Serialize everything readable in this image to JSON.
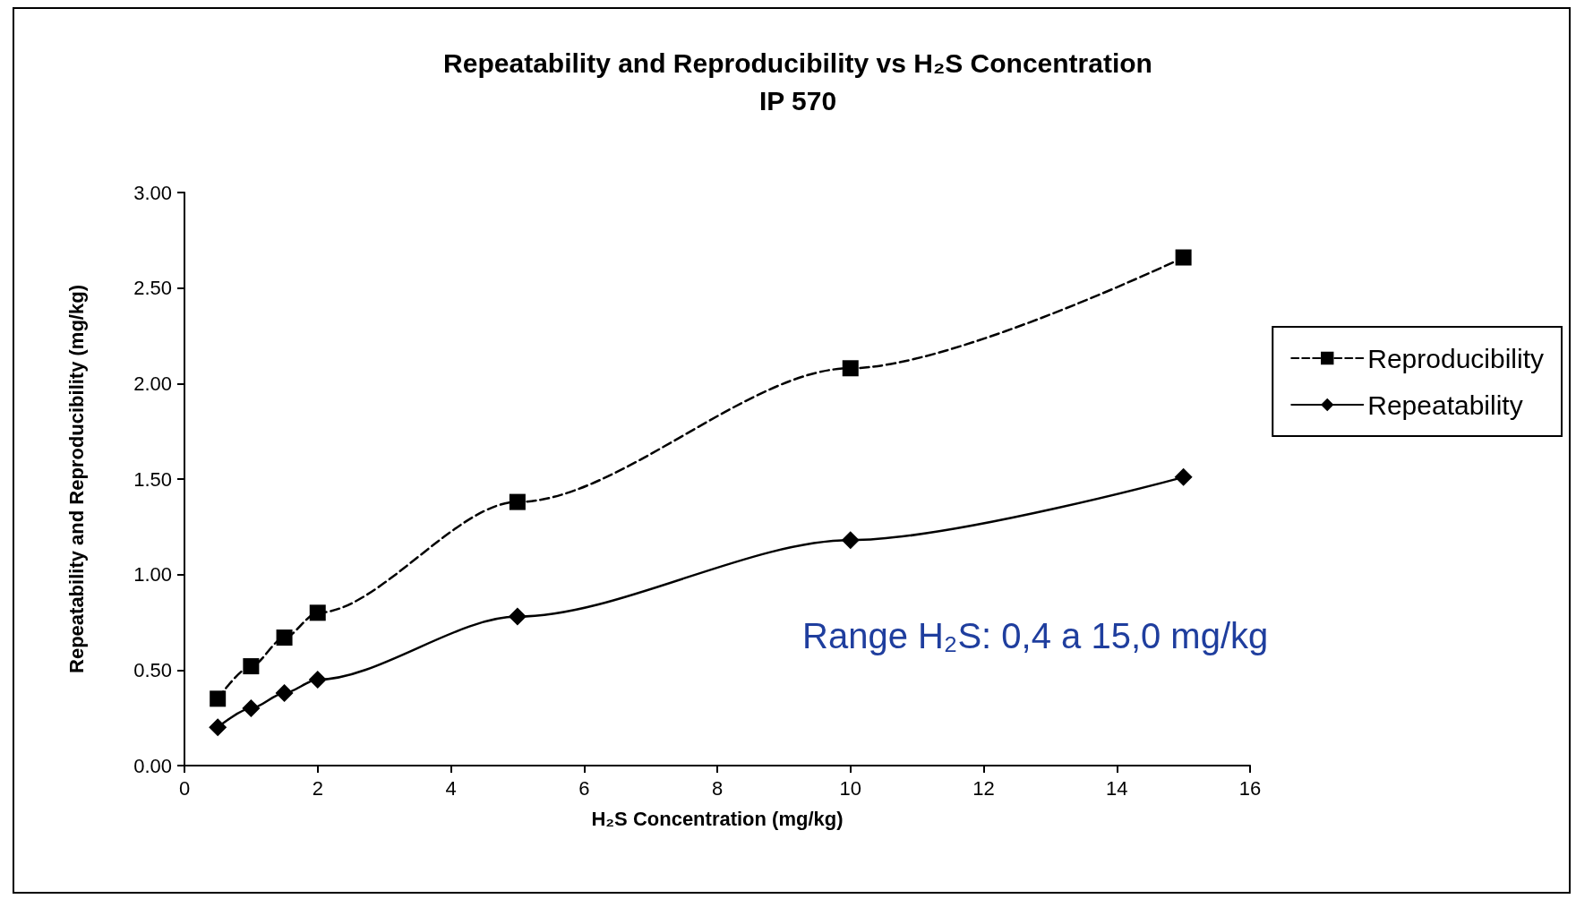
{
  "chart_data": {
    "type": "line",
    "title": "Repeatability and Reproducibility vs H₂S Concentration",
    "subtitle": "IP 570",
    "xlabel": "H₂S Concentration (mg/kg)",
    "ylabel": "Repeatability and Reproducibility (mg/kg)",
    "x": [
      0.5,
      1,
      1.5,
      2,
      5,
      10,
      15
    ],
    "series": [
      {
        "name": "Reproducibility",
        "color": "#000000",
        "marker": "square",
        "line_style": "dashed",
        "values": [
          0.35,
          0.52,
          0.67,
          0.8,
          1.38,
          2.08,
          2.66
        ]
      },
      {
        "name": "Repeatability",
        "color": "#000000",
        "marker": "diamond",
        "line_style": "solid",
        "values": [
          0.2,
          0.3,
          0.38,
          0.45,
          0.78,
          1.18,
          1.51
        ]
      }
    ],
    "xlim": [
      0,
      16
    ],
    "xticks": [
      0,
      2,
      4,
      6,
      8,
      10,
      12,
      14,
      16
    ],
    "ylim": [
      0,
      3
    ],
    "yticks": [
      {
        "value": 0,
        "label": "0.00"
      },
      {
        "value": 0.5,
        "label": "0.50"
      },
      {
        "value": 1,
        "label": "1.00"
      },
      {
        "value": 1.5,
        "label": "1.50"
      },
      {
        "value": 2,
        "label": "2.00"
      },
      {
        "value": 2.5,
        "label": "2.50"
      },
      {
        "value": 3,
        "label": "3.00"
      }
    ],
    "grid": false,
    "legend": "right",
    "annotations": [
      "Range H₂S: 0,4 a 15,0 mg/kg"
    ]
  }
}
